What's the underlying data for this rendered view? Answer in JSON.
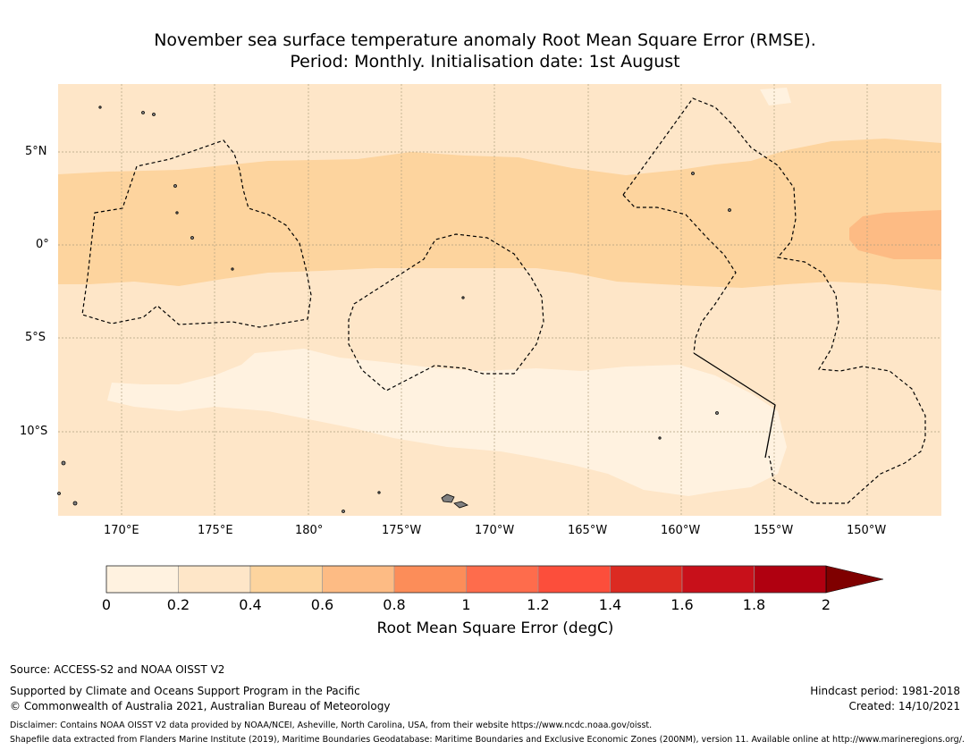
{
  "title_line1": "November sea surface temperature anomaly Root Mean Square Error (RMSE).",
  "title_line2": "Period: Monthly. Initialisation date: 1st August",
  "map": {
    "lon_labels": [
      "170°E",
      "175°E",
      "180°",
      "175°W",
      "170°W",
      "165°W",
      "160°W",
      "155°W",
      "150°W"
    ],
    "lat_labels": [
      "5°N",
      "0°",
      "5°S",
      "10°S"
    ],
    "colors": {
      "c0": "#fff2e0",
      "c1": "#fee6c8",
      "c2": "#fdd49e",
      "c3": "#fdbb84",
      "land": "#808080",
      "eez_line": "#000000",
      "gridline": "#b0a080"
    }
  },
  "colorbar": {
    "title": "Root Mean Square Error (degC)",
    "tick_labels": [
      "0",
      "0.2",
      "0.4",
      "0.6",
      "0.8",
      "1",
      "1.2",
      "1.4",
      "1.6",
      "1.8",
      "2"
    ],
    "colors": [
      "#fff2e0",
      "#fee6c8",
      "#fdd49e",
      "#fdbb84",
      "#fc8d59",
      "#fe6c4c",
      "#fc4e3b",
      "#dc2a22",
      "#c8101a",
      "#b00010"
    ],
    "extend_color": "#7f0000"
  },
  "footer": {
    "source": "Source: ACCESS-S2 and NOAA OISST V2",
    "supported": "Supported by Climate and Oceans Support Program in the Pacific",
    "copyright": "© Commonwealth of Australia 2021, Australian Bureau of Meteorology",
    "hindcast": "Hindcast period: 1981-2018",
    "created": "Created: 14/10/2021",
    "disclaimer": "Disclaimer: Contains NOAA OISST V2 data provided by NOAA/NCEI, Asheville, North Carolina, USA, from their website https://www.ncdc.noaa.gov/oisst.",
    "shapefile": "Shapefile data extracted from Flanders Marine Institute (2019), Maritime Boundaries Geodatabase: Maritime Boundaries and Exclusive Economic Zones (200NM), version 11. Available online at http://www.marineregions.org/."
  }
}
